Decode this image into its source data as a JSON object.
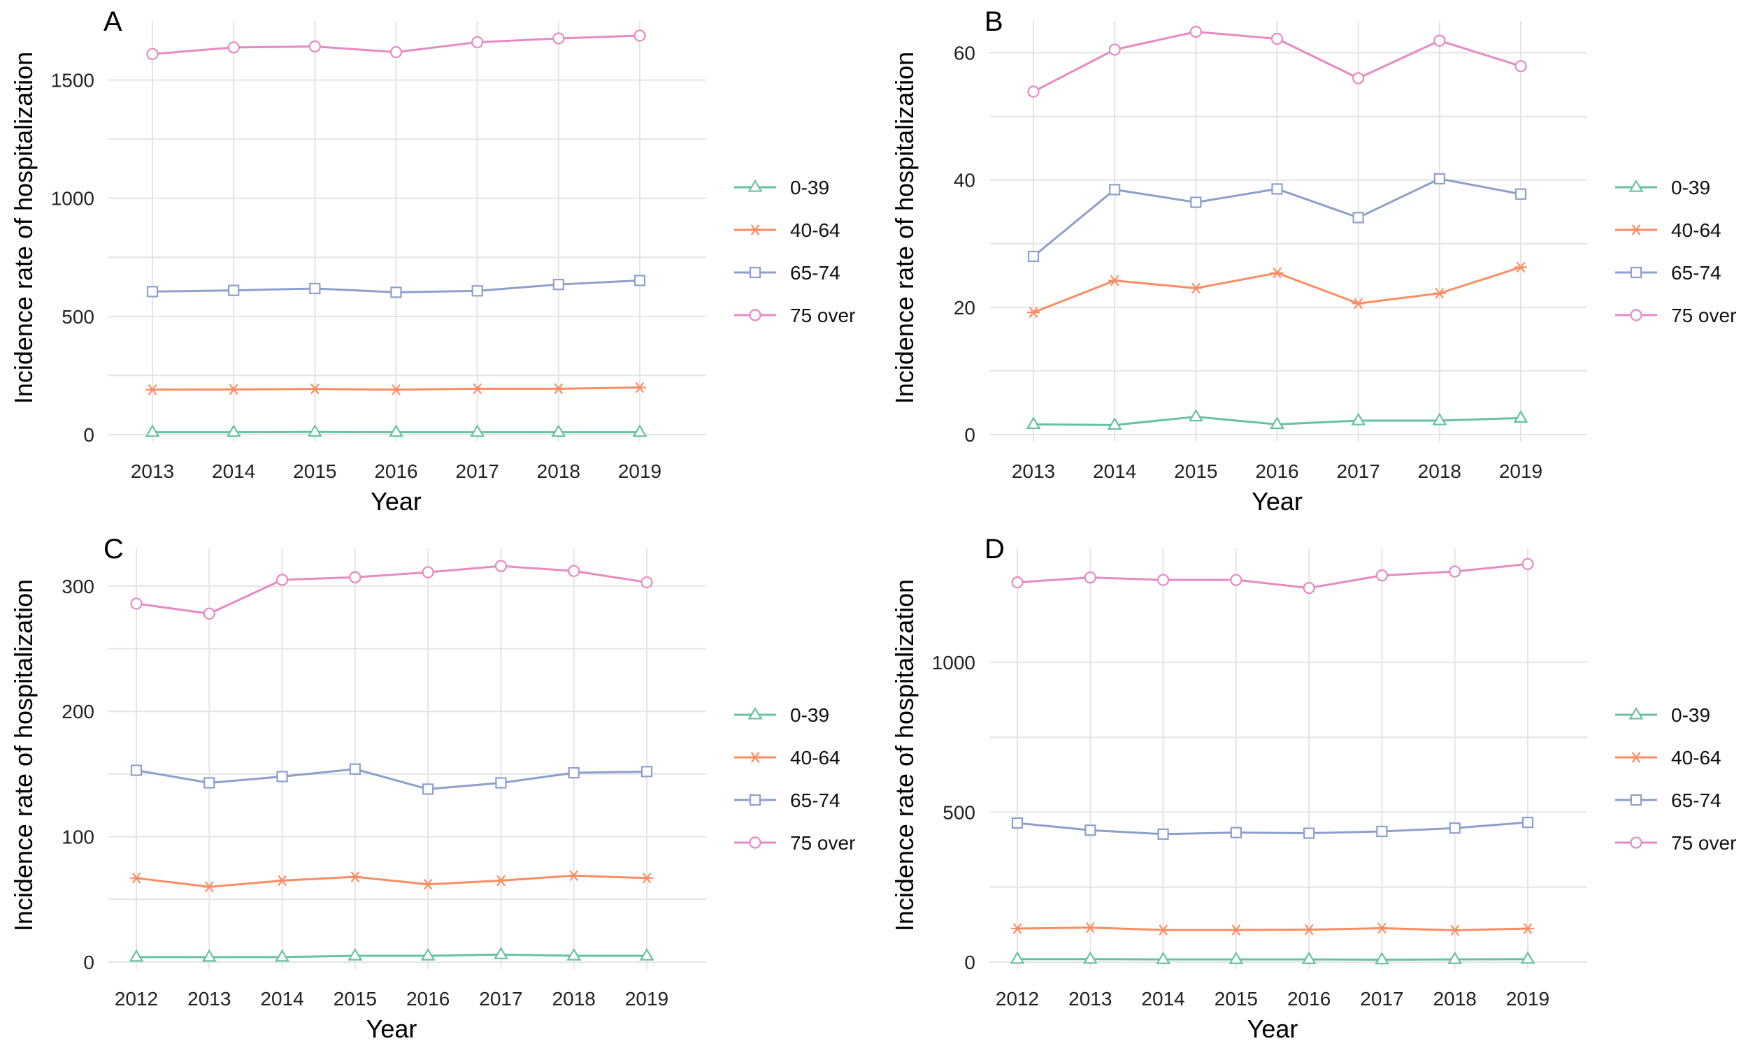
{
  "legend": {
    "series": [
      {
        "name": "0-39",
        "color": "#66c2a5",
        "marker": "triangle-icon"
      },
      {
        "name": "40-64",
        "color": "#fc8d62",
        "marker": "asterisk-icon"
      },
      {
        "name": "65-74",
        "color": "#8da0cb",
        "marker": "square-icon"
      },
      {
        "name": "75 over",
        "color": "#e78ac3",
        "marker": "circle-icon"
      }
    ]
  },
  "chart_data": [
    {
      "panel": "A",
      "type": "line",
      "xlabel": "Year",
      "ylabel": "Incidence rate of hospitalization",
      "x": [
        "2013",
        "2014",
        "2015",
        "2016",
        "2017",
        "2018",
        "2019"
      ],
      "ylim": [
        0,
        1750
      ],
      "yticks": [
        0,
        500,
        1000,
        1500
      ],
      "legend_position": "right",
      "grid": true,
      "series": [
        {
          "name": "0-39",
          "values": [
            10,
            10,
            11,
            10,
            10,
            10,
            10
          ]
        },
        {
          "name": "40-64",
          "values": [
            190,
            191,
            193,
            190,
            194,
            194,
            199
          ]
        },
        {
          "name": "65-74",
          "values": [
            605,
            610,
            618,
            602,
            608,
            635,
            652
          ]
        },
        {
          "name": "75 over",
          "values": [
            1610,
            1638,
            1642,
            1618,
            1660,
            1676,
            1688
          ]
        }
      ]
    },
    {
      "panel": "B",
      "type": "line",
      "xlabel": "Year",
      "ylabel": "Incidence rate of hospitalization",
      "x": [
        "2013",
        "2014",
        "2015",
        "2016",
        "2017",
        "2018",
        "2019"
      ],
      "ylim": [
        0,
        65
      ],
      "yticks": [
        0,
        20,
        40,
        60
      ],
      "legend_position": "right",
      "grid": true,
      "series": [
        {
          "name": "0-39",
          "values": [
            1.6,
            1.5,
            2.8,
            1.6,
            2.2,
            2.2,
            2.6
          ]
        },
        {
          "name": "40-64",
          "values": [
            19.2,
            24.2,
            23.0,
            25.4,
            20.6,
            22.2,
            26.3
          ]
        },
        {
          "name": "65-74",
          "values": [
            28.0,
            38.5,
            36.5,
            38.6,
            34.1,
            40.2,
            37.8
          ]
        },
        {
          "name": "75 over",
          "values": [
            53.9,
            60.5,
            63.3,
            62.2,
            56.0,
            61.9,
            57.9
          ]
        }
      ]
    },
    {
      "panel": "C",
      "type": "line",
      "xlabel": "Year",
      "ylabel": "Incidence rate of hospitalization",
      "x": [
        "2012",
        "2013",
        "2014",
        "2015",
        "2016",
        "2017",
        "2018",
        "2019"
      ],
      "ylim": [
        0,
        330
      ],
      "yticks": [
        0,
        100,
        200,
        300
      ],
      "legend_position": "right",
      "grid": true,
      "series": [
        {
          "name": "0-39",
          "values": [
            4,
            4,
            4,
            5,
            5,
            6,
            5,
            5
          ]
        },
        {
          "name": "40-64",
          "values": [
            67,
            60,
            65,
            68,
            62,
            65,
            69,
            67
          ]
        },
        {
          "name": "65-74",
          "values": [
            153,
            143,
            148,
            154,
            138,
            143,
            151,
            152
          ]
        },
        {
          "name": "75 over",
          "values": [
            286,
            278,
            305,
            307,
            311,
            316,
            312,
            303
          ]
        }
      ]
    },
    {
      "panel": "D",
      "type": "line",
      "xlabel": "Year",
      "ylabel": "Incidence rate of hospitalization",
      "x": [
        "2012",
        "2013",
        "2014",
        "2015",
        "2016",
        "2017",
        "2018",
        "2019"
      ],
      "ylim": [
        0,
        1380
      ],
      "yticks": [
        0,
        500,
        1000
      ],
      "legend_position": "right",
      "grid": true,
      "series": [
        {
          "name": "0-39",
          "values": [
            10,
            10,
            9,
            9,
            9,
            8,
            9,
            10
          ]
        },
        {
          "name": "40-64",
          "values": [
            112,
            115,
            107,
            107,
            108,
            113,
            106,
            112
          ]
        },
        {
          "name": "65-74",
          "values": [
            464,
            440,
            427,
            432,
            430,
            436,
            447,
            466
          ]
        },
        {
          "name": "75 over",
          "values": [
            1267,
            1283,
            1275,
            1275,
            1248,
            1290,
            1303,
            1328
          ]
        }
      ]
    }
  ]
}
